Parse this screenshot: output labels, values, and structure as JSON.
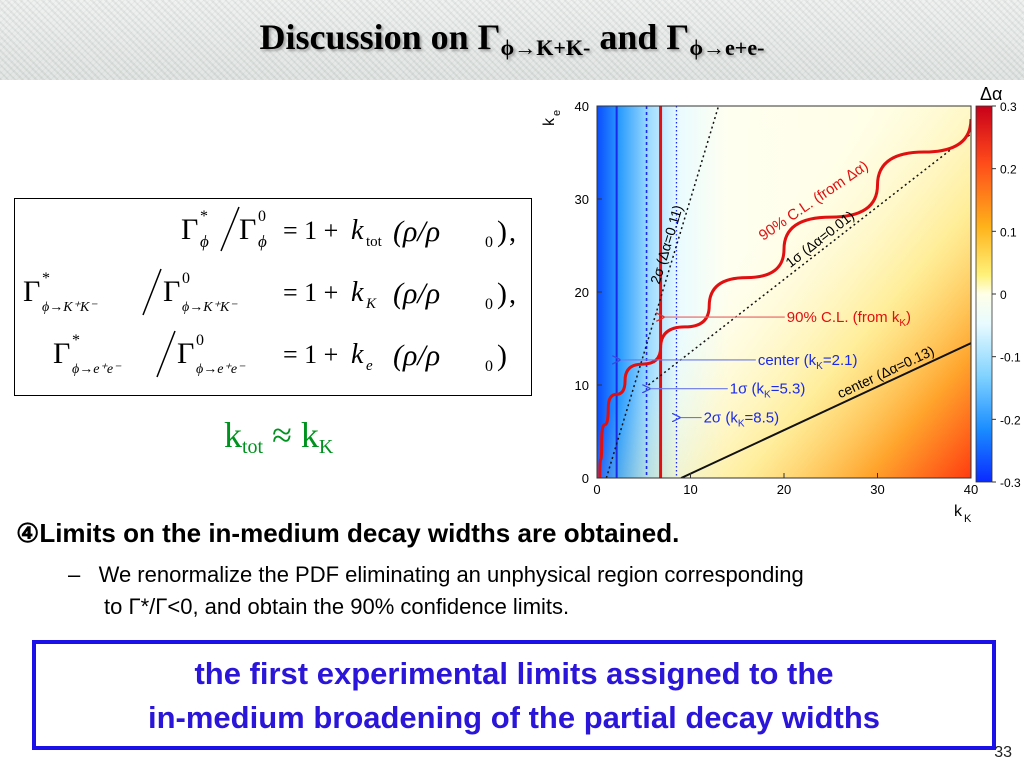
{
  "slide": {
    "title_prefix": "Discussion on Γ",
    "title_sub1": "ϕ→K+K-",
    "title_mid": " and Γ",
    "title_sub2": "ϕ→e+e-",
    "ktot_k": "k",
    "ktot_sub": "tot",
    "ktot_approx": "≈",
    "ktot_k2": "k",
    "ktot_sub2": "K",
    "bullet_marker": "④",
    "bullet_text": "Limits on the in-medium decay widths are obtained.",
    "sub_dash": "–",
    "sub_text1": "We renormalize the PDF eliminating an unphysical region corresponding",
    "sub_text2": "to Γ*/Γ<0, and obtain the 90% confidence limits.",
    "conclusion_line1": "the first experimental limits assigned to the",
    "conclusion_line2": "in-medium broadening of the partial decay widths",
    "slide_number": "33"
  },
  "equations": {
    "gamma": "Γ",
    "star": "*",
    "zero": "0",
    "phi": "ϕ",
    "kk": "ϕ→K⁺K⁻",
    "ee": "ϕ→e⁺e⁻",
    "one_plus": "= 1 +",
    "k": "k",
    "sub_tot": "tot",
    "sub_K": "K",
    "sub_e": "e",
    "rho_ratio": "(ρ/ρ",
    "rho_close": ")",
    "comma": ","
  },
  "chart_data": {
    "type": "heatmap",
    "xlabel": "k",
    "xlabel_sub": "K",
    "ylabel": "k",
    "ylabel_sub": "e",
    "xlim": [
      0,
      40
    ],
    "ylim": [
      0,
      40
    ],
    "xticks": [
      "0",
      "10",
      "20",
      "30",
      "40"
    ],
    "yticks": [
      "0",
      "10",
      "20",
      "30",
      "40"
    ],
    "colorbar": {
      "label": "Δα",
      "range": [
        -0.3,
        0.3
      ],
      "ticks": [
        "0.3",
        "0.2",
        "0.1",
        "0",
        "-0.1",
        "-0.2",
        "-0.3"
      ]
    },
    "vertical_lines": [
      {
        "x": 2.1,
        "style": "solid-blue"
      },
      {
        "x": 5.3,
        "style": "dashed-blue"
      },
      {
        "x": 8.5,
        "style": "dotted-blue"
      },
      {
        "x": 6.8,
        "style": "solid-red"
      }
    ],
    "diagonal_lines": [
      {
        "label": "2σ (Δα=0.11)",
        "from": [
          1,
          0
        ],
        "to": [
          13,
          40
        ],
        "style": "dotted-black"
      },
      {
        "label": "1σ (Δα=0.01)",
        "from": [
          5.5,
          10
        ],
        "to": [
          40,
          37
        ],
        "style": "dotted-black"
      },
      {
        "label": "center (Δα=0.13)",
        "from": [
          9,
          0
        ],
        "to": [
          40,
          14.5
        ],
        "style": "solid-black"
      }
    ],
    "curve_90cl": {
      "label": "90% C.L. (from Δα)",
      "points": [
        [
          0.3,
          0
        ],
        [
          0.5,
          4
        ],
        [
          1.2,
          7.5
        ],
        [
          3,
          10.5
        ],
        [
          6.8,
          14
        ],
        [
          12,
          18.5
        ],
        [
          20,
          24.6
        ],
        [
          30,
          31.5
        ],
        [
          40,
          38.6
        ]
      ]
    },
    "annotations": [
      {
        "text": "90% C.L. (from k",
        "sub": "K",
        "tail": ")",
        "color": "red",
        "at": [
          20.3,
          17.3
        ],
        "arrow_to": [
          6.8,
          17.3
        ]
      },
      {
        "text": "center (k",
        "sub": "K",
        "tail": "=2.1)",
        "color": "blue",
        "at": [
          17.2,
          12.7
        ],
        "arrow_to": [
          2.1,
          12.7
        ]
      },
      {
        "text": "1σ (k",
        "sub": "K",
        "tail": "=5.3)",
        "color": "blue",
        "at": [
          14.2,
          9.6
        ],
        "arrow_to": [
          5.3,
          9.6
        ]
      },
      {
        "text": "2σ (k",
        "sub": "K",
        "tail": "=8.5)",
        "color": "blue",
        "at": [
          11.4,
          6.5
        ],
        "arrow_to": [
          8.5,
          6.5
        ]
      }
    ]
  }
}
